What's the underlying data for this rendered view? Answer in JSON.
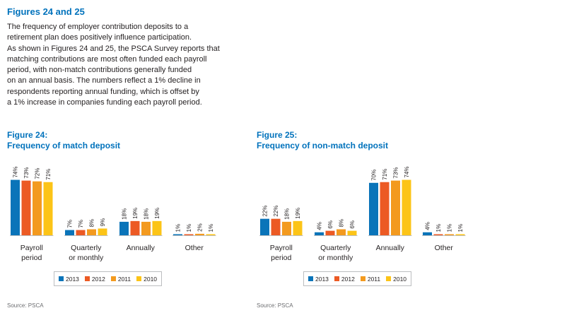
{
  "heading": "Figures 24 and 25",
  "intro_lines": [
    "The frequency of employer contribution deposits to a",
    "retirement plan does positively influence participation.",
    "As shown in Figures 24 and 25, the PSCA Survey reports that",
    "matching contributions are most often funded each payroll",
    "period, with non-match contributions generally funded",
    "on an annual basis. The numbers reflect a 1% decline in",
    "respondents reporting annual funding, which is offset by",
    "a 1% increase in companies funding each payroll period."
  ],
  "series_colors": {
    "2013": "#0a74b9",
    "2012": "#ec5a24",
    "2011": "#f39a1f",
    "2010": "#fcc417"
  },
  "chart_data": [
    {
      "type": "bar",
      "figure_label": "Figure 24:",
      "title": "Frequency of match deposit",
      "categories": [
        [
          "Payroll",
          "period"
        ],
        [
          "Quarterly",
          "or monthly"
        ],
        [
          "Annually"
        ],
        [
          "Other"
        ]
      ],
      "series": [
        {
          "name": "2013",
          "values": [
            74,
            7,
            18,
            1
          ]
        },
        {
          "name": "2012",
          "values": [
            73,
            7,
            19,
            1
          ]
        },
        {
          "name": "2011",
          "values": [
            72,
            8,
            18,
            2
          ]
        },
        {
          "name": "2010",
          "values": [
            71,
            9,
            19,
            1
          ]
        }
      ],
      "ylim": [
        0,
        100
      ],
      "value_suffix": "%",
      "source": "Source: PSCA"
    },
    {
      "type": "bar",
      "figure_label": "Figure 25:",
      "title": "Frequency of non-match deposit",
      "categories": [
        [
          "Payroll",
          "period"
        ],
        [
          "Quarterly",
          "or monthly"
        ],
        [
          "Annually"
        ],
        [
          "Other"
        ]
      ],
      "series": [
        {
          "name": "2013",
          "values": [
            22,
            4,
            70,
            4
          ]
        },
        {
          "name": "2012",
          "values": [
            22,
            6,
            71,
            1
          ]
        },
        {
          "name": "2011",
          "values": [
            18,
            8,
            73,
            1
          ]
        },
        {
          "name": "2010",
          "values": [
            19,
            6,
            74,
            1
          ]
        }
      ],
      "ylim": [
        0,
        100
      ],
      "value_suffix": "%",
      "source": "Source: PSCA"
    }
  ]
}
